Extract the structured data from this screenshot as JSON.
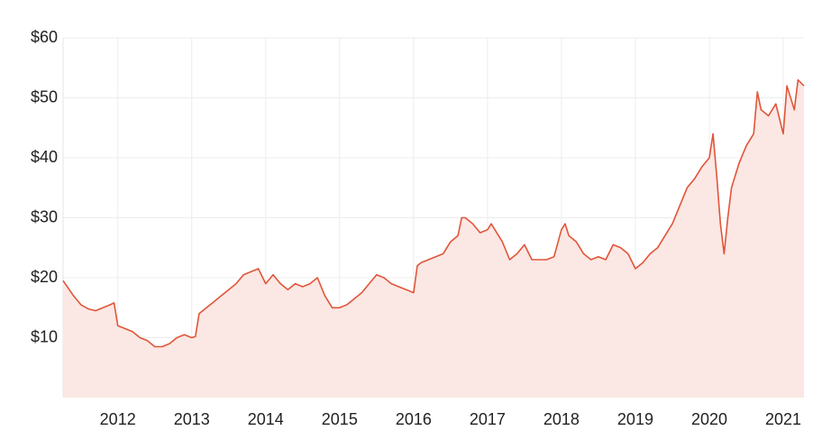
{
  "chart_data": {
    "type": "area",
    "x": [
      2011.26,
      2011.4,
      2011.5,
      2011.6,
      2011.7,
      2011.8,
      2011.9,
      2011.95,
      2012.0,
      2012.1,
      2012.2,
      2012.3,
      2012.4,
      2012.5,
      2012.6,
      2012.7,
      2012.8,
      2012.9,
      2013.0,
      2013.05,
      2013.1,
      2013.2,
      2013.3,
      2013.4,
      2013.5,
      2013.6,
      2013.7,
      2013.8,
      2013.9,
      2014.0,
      2014.1,
      2014.2,
      2014.3,
      2014.4,
      2014.5,
      2014.6,
      2014.7,
      2014.8,
      2014.9,
      2015.0,
      2015.1,
      2015.2,
      2015.3,
      2015.4,
      2015.5,
      2015.6,
      2015.7,
      2015.8,
      2015.9,
      2016.0,
      2016.05,
      2016.1,
      2016.2,
      2016.3,
      2016.4,
      2016.5,
      2016.6,
      2016.65,
      2016.7,
      2016.8,
      2016.9,
      2017.0,
      2017.05,
      2017.1,
      2017.2,
      2017.3,
      2017.4,
      2017.5,
      2017.6,
      2017.7,
      2017.8,
      2017.9,
      2018.0,
      2018.05,
      2018.1,
      2018.2,
      2018.3,
      2018.4,
      2018.5,
      2018.6,
      2018.7,
      2018.8,
      2018.9,
      2019.0,
      2019.1,
      2019.2,
      2019.3,
      2019.4,
      2019.5,
      2019.6,
      2019.7,
      2019.8,
      2019.9,
      2020.0,
      2020.05,
      2020.1,
      2020.15,
      2020.2,
      2020.25,
      2020.3,
      2020.4,
      2020.5,
      2020.6,
      2020.65,
      2020.7,
      2020.8,
      2020.9,
      2021.0,
      2021.05,
      2021.1,
      2021.15,
      2021.2,
      2021.28
    ],
    "values": [
      19.5,
      17,
      15.5,
      14.8,
      14.5,
      15,
      15.5,
      15.8,
      12,
      11.5,
      11,
      10,
      9.5,
      8.5,
      8.5,
      9,
      10,
      10.5,
      10,
      10.2,
      14,
      15,
      16,
      17,
      18,
      19,
      20.5,
      21,
      21.5,
      19,
      20.5,
      19,
      18,
      19,
      18.5,
      19,
      20,
      17,
      15,
      15,
      15.5,
      16.5,
      17.5,
      19,
      20.5,
      20,
      19,
      18.5,
      18,
      17.5,
      22,
      22.5,
      23,
      23.5,
      24,
      26,
      27,
      30,
      30,
      29,
      27.5,
      28,
      29,
      28,
      26,
      23,
      24,
      25.5,
      23,
      23,
      23,
      23.5,
      28,
      29,
      27,
      26,
      24,
      23,
      23.5,
      23,
      25.5,
      25,
      24,
      21.5,
      22.5,
      24,
      25,
      27,
      29,
      32,
      35,
      36.5,
      38.5,
      40,
      44,
      37,
      29,
      24,
      30,
      35,
      39,
      42,
      44,
      51,
      48,
      47,
      49,
      44,
      52,
      50,
      48,
      53,
      52
    ],
    "color": "#e0553a",
    "fill": "#fbe7e3",
    "xlim": [
      2011.26,
      2021.28
    ],
    "xticks": [
      2012,
      2013,
      2014,
      2015,
      2016,
      2017,
      2018,
      2019,
      2020,
      2021
    ],
    "ylim": [
      0,
      60
    ],
    "yticks": [
      {
        "value": 10,
        "label": "$10"
      },
      {
        "value": 20,
        "label": "$20"
      },
      {
        "value": 30,
        "label": "$30"
      },
      {
        "value": 40,
        "label": "$40"
      },
      {
        "value": 50,
        "label": "$50"
      },
      {
        "value": 60,
        "label": "$60"
      }
    ],
    "grid": true
  }
}
